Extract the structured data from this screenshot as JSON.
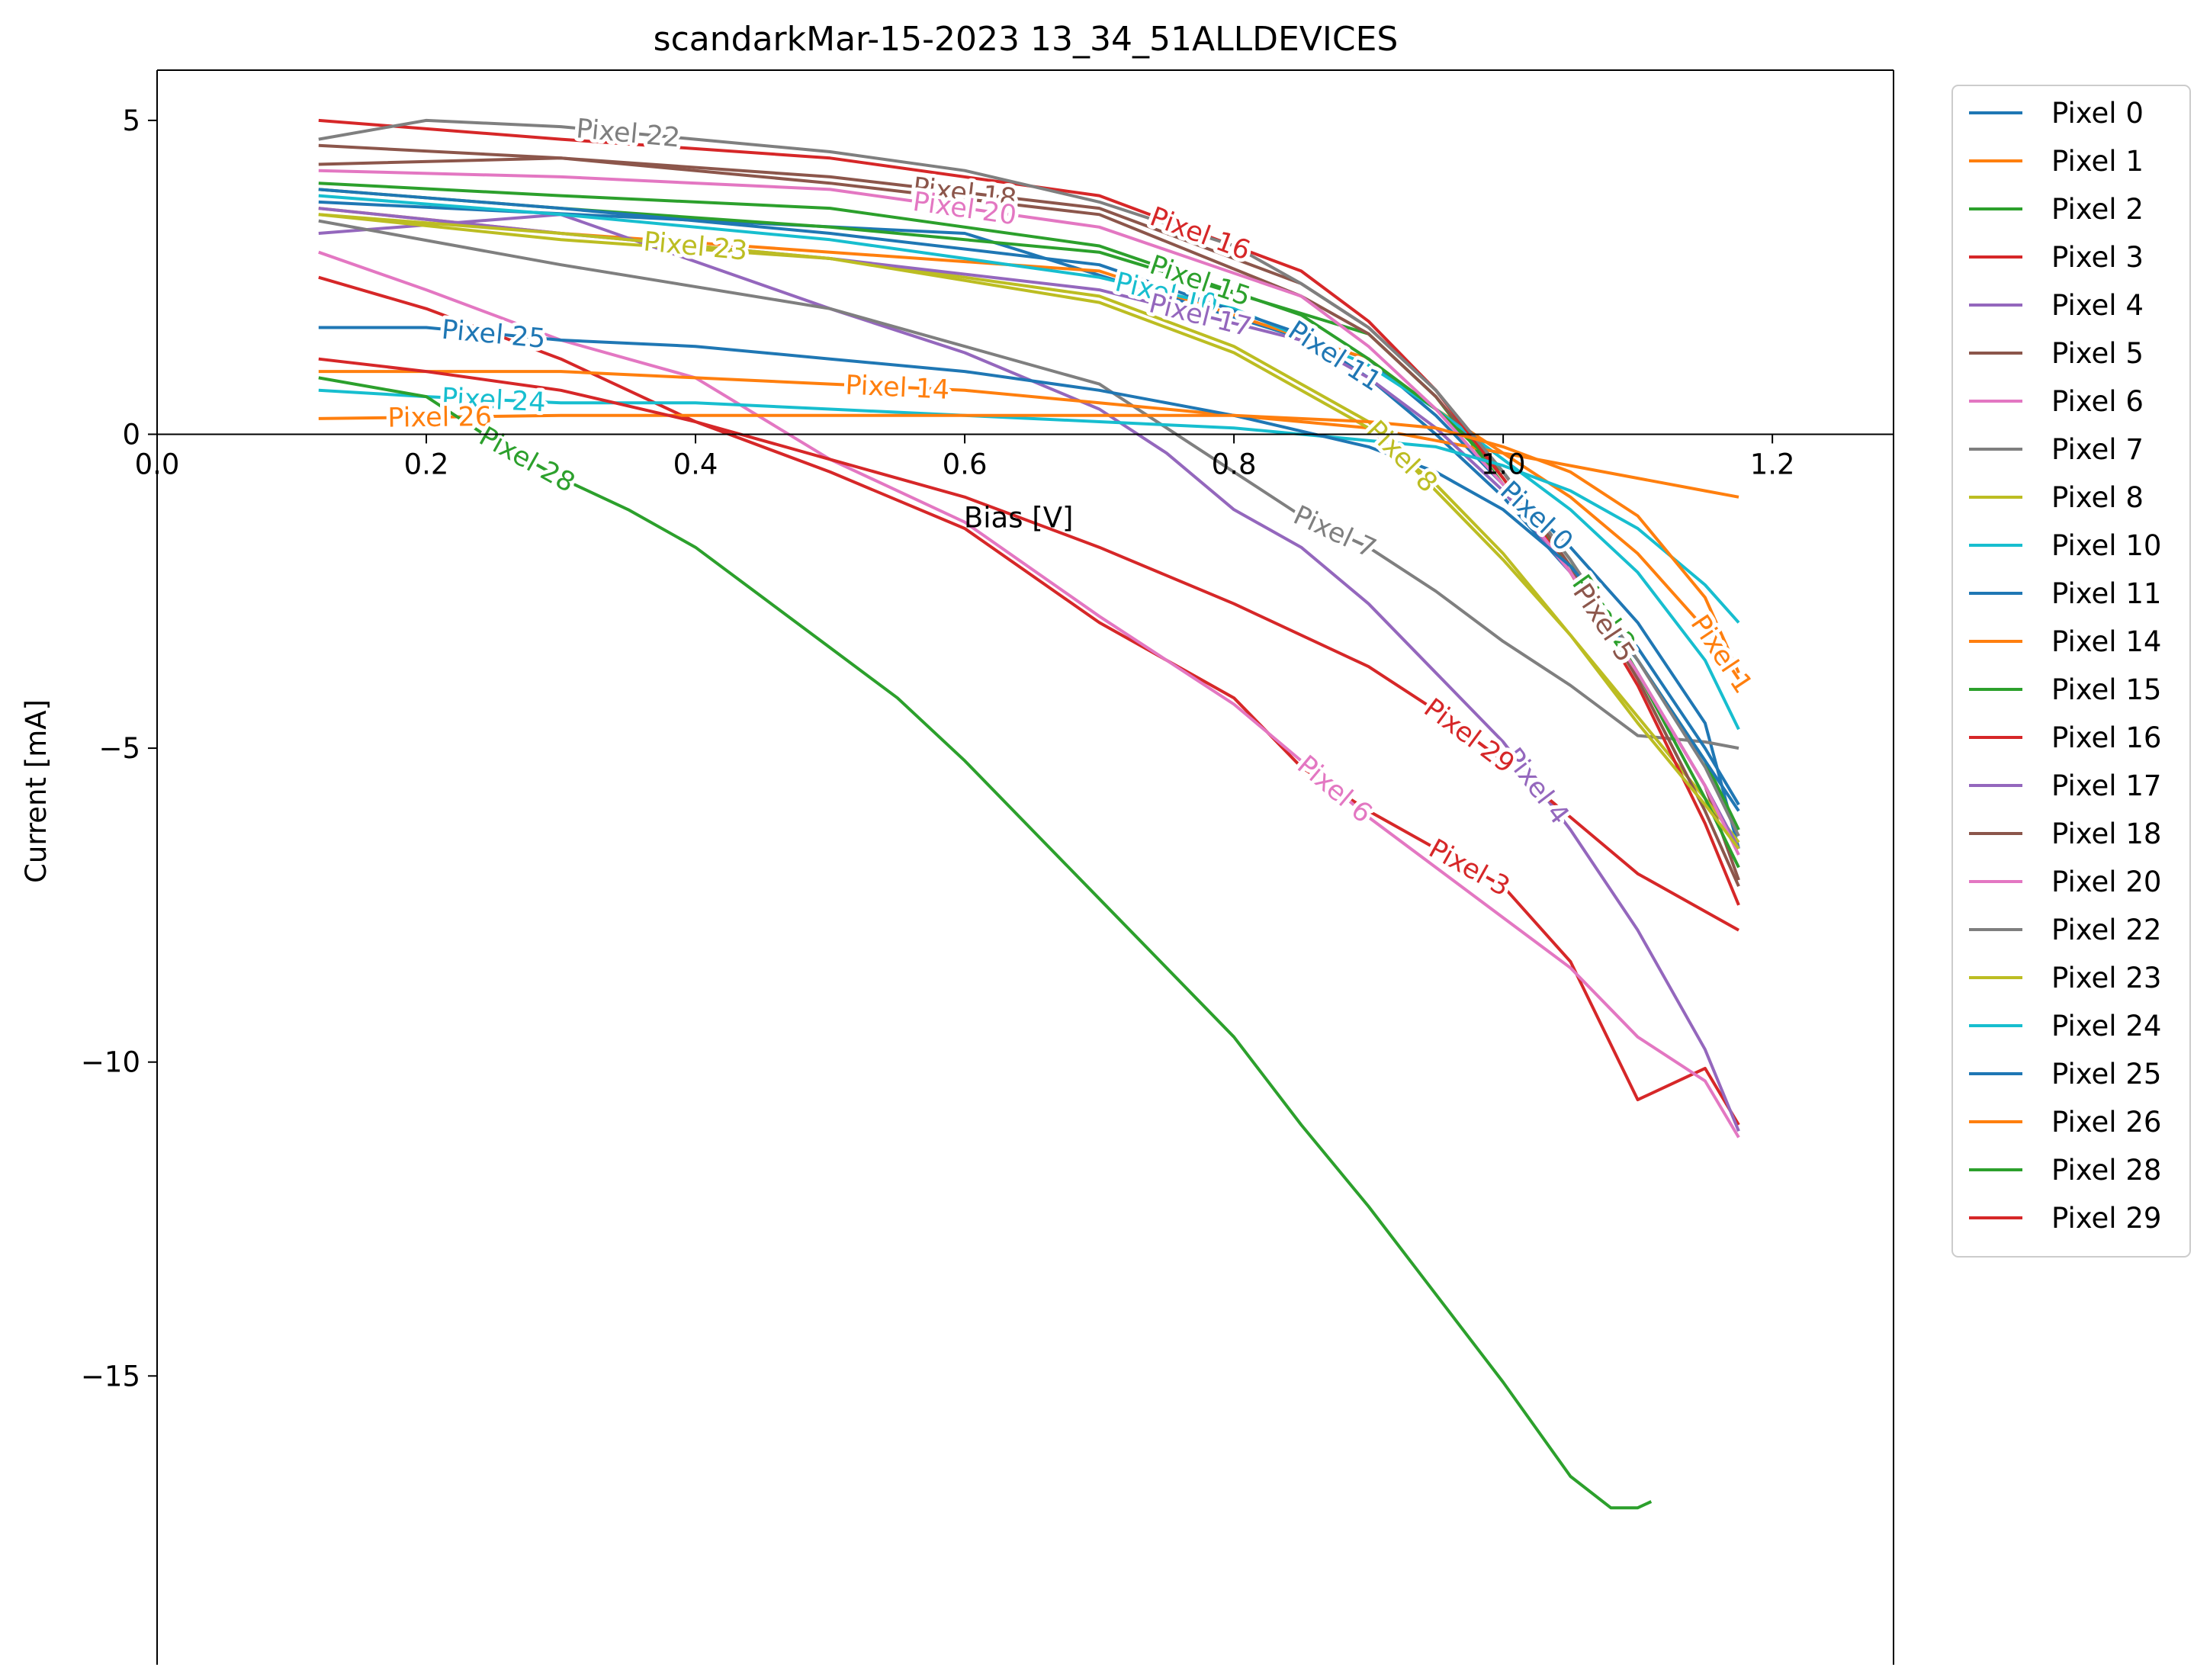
{
  "chart_data": {
    "type": "line",
    "title": "scandarkMar-15-2023 13_34_51ALLDEVICES",
    "xlabel": "Bias [V]",
    "ylabel": "Current [mA]",
    "xlim": [
      0.0,
      1.29
    ],
    "ylim": [
      -19.6,
      5.8
    ],
    "x_ticks": [
      0.0,
      0.2,
      0.4,
      0.6,
      0.8,
      1.0,
      1.2
    ],
    "x_tick_labels": [
      "0.0",
      "0.2",
      "0.4",
      "0.6",
      "0.8",
      "1.0",
      "1.2"
    ],
    "y_ticks": [
      5,
      0,
      -5,
      -10,
      -15
    ],
    "y_tick_labels": [
      "5",
      "0",
      "−5",
      "−10",
      "−15"
    ],
    "grid": false,
    "legend_position": "outside-right",
    "series": [
      {
        "name": "Pixel 0",
        "color": "#1f77b4",
        "label_text": "Pixel 0",
        "x": [
          0.12,
          0.6,
          0.9,
          0.95,
          1.0,
          1.05,
          1.1,
          1.15,
          1.175
        ],
        "y": [
          3.7,
          3.2,
          1.2,
          0.3,
          -0.8,
          -1.8,
          -3.0,
          -4.6,
          -6.6
        ]
      },
      {
        "name": "Pixel 1",
        "color": "#ff7f0e",
        "label_text": "Pixel 1",
        "x": [
          0.12,
          0.3,
          0.5,
          0.7,
          0.9,
          0.95,
          1.0,
          1.05,
          1.1,
          1.15,
          1.175
        ],
        "y": [
          3.6,
          3.2,
          2.9,
          2.6,
          1.2,
          0.4,
          -0.3,
          -1.0,
          -1.9,
          -3.1,
          -3.9
        ]
      },
      {
        "name": "Pixel 2",
        "color": "#2ca02c",
        "label_text": "Pixel 2",
        "x": [
          0.12,
          0.3,
          0.5,
          0.7,
          0.9,
          0.95,
          1.0,
          1.05,
          1.1,
          1.15,
          1.175
        ],
        "y": [
          3.9,
          3.6,
          3.3,
          2.9,
          1.6,
          0.6,
          -0.8,
          -2.1,
          -3.6,
          -5.2,
          -6.3
        ]
      },
      {
        "name": "Pixel 3",
        "color": "#d62728",
        "label_text": "Pixel 3",
        "x": [
          0.12,
          0.2,
          0.3,
          0.4,
          0.5,
          0.6,
          0.7,
          0.8,
          0.85,
          0.9,
          0.95,
          1.0,
          1.05,
          1.1,
          1.15,
          1.175
        ],
        "y": [
          2.5,
          2.0,
          1.2,
          0.2,
          -0.6,
          -1.5,
          -3.0,
          -4.2,
          -5.3,
          -6.0,
          -6.6,
          -7.2,
          -8.4,
          -10.6,
          -10.1,
          -11.0
        ]
      },
      {
        "name": "Pixel 4",
        "color": "#9467bd",
        "label_text": "Pixel 4",
        "x": [
          0.12,
          0.3,
          0.5,
          0.6,
          0.7,
          0.75,
          0.8,
          0.85,
          0.9,
          0.95,
          1.0,
          1.05,
          1.1,
          1.15,
          1.175
        ],
        "y": [
          3.2,
          3.5,
          2.0,
          1.3,
          0.4,
          -0.3,
          -1.2,
          -1.8,
          -2.7,
          -3.8,
          -4.9,
          -6.3,
          -7.9,
          -9.8,
          -11.1
        ]
      },
      {
        "name": "Pixel 5",
        "color": "#8c564b",
        "label_text": "Pixel 5",
        "x": [
          0.12,
          0.3,
          0.5,
          0.7,
          0.85,
          0.9,
          0.95,
          1.0,
          1.05,
          1.1,
          1.15,
          1.175
        ],
        "y": [
          4.3,
          4.4,
          4.0,
          3.5,
          2.2,
          1.6,
          0.6,
          -0.7,
          -2.2,
          -3.8,
          -5.6,
          -7.1
        ]
      },
      {
        "name": "Pixel 6",
        "color": "#e377c2",
        "label_text": "Pixel 6",
        "x": [
          0.12,
          0.2,
          0.3,
          0.4,
          0.5,
          0.6,
          0.7,
          0.8,
          0.85,
          0.9,
          0.95,
          1.0,
          1.05,
          1.1,
          1.15,
          1.175
        ],
        "y": [
          2.9,
          2.3,
          1.5,
          0.9,
          -0.4,
          -1.4,
          -2.9,
          -4.3,
          -5.2,
          -6.1,
          -6.9,
          -7.7,
          -8.5,
          -9.6,
          -10.3,
          -11.2
        ]
      },
      {
        "name": "Pixel 7",
        "color": "#7f7f7f",
        "label_text": "Pixel 7",
        "x": [
          0.12,
          0.3,
          0.5,
          0.6,
          0.7,
          0.75,
          0.8,
          0.85,
          0.9,
          0.95,
          1.0,
          1.05,
          1.1,
          1.15,
          1.175
        ],
        "y": [
          3.4,
          2.7,
          2.0,
          1.4,
          0.8,
          0.1,
          -0.6,
          -1.3,
          -1.8,
          -2.5,
          -3.3,
          -4.0,
          -4.8,
          -4.9,
          -5.0
        ]
      },
      {
        "name": "Pixel 8",
        "color": "#bcbd22",
        "label_text": "Pixel 8",
        "x": [
          0.12,
          0.3,
          0.5,
          0.7,
          0.8,
          0.85,
          0.9,
          0.95,
          1.0,
          1.05,
          1.1,
          1.15,
          1.175
        ],
        "y": [
          3.5,
          3.1,
          2.8,
          2.2,
          1.4,
          0.8,
          0.2,
          -0.9,
          -2.0,
          -3.2,
          -4.5,
          -5.8,
          -6.5
        ]
      },
      {
        "name": "Pixel 10",
        "color": "#17becf",
        "label_text": "Pixel 10",
        "x": [
          0.12,
          0.3,
          0.5,
          0.7,
          0.8,
          0.9,
          0.95,
          1.0,
          1.05,
          1.1,
          1.15,
          1.175
        ],
        "y": [
          3.8,
          3.5,
          3.1,
          2.5,
          2.0,
          1.1,
          0.4,
          -0.4,
          -1.2,
          -2.2,
          -3.6,
          -4.7
        ]
      },
      {
        "name": "Pixel 11",
        "color": "#1f77b4",
        "label_text": "Pixel 11",
        "x": [
          0.12,
          0.3,
          0.5,
          0.7,
          0.85,
          0.9,
          0.95,
          1.0,
          1.05,
          1.1,
          1.15,
          1.175
        ],
        "y": [
          3.9,
          3.6,
          3.2,
          2.7,
          1.6,
          0.9,
          0.0,
          -1.0,
          -2.2,
          -3.6,
          -5.2,
          -6.0
        ]
      },
      {
        "name": "Pixel 14",
        "color": "#ff7f0e",
        "label_text": "Pixel 14",
        "x": [
          0.12,
          0.2,
          0.3,
          0.4,
          0.5,
          0.6,
          0.7,
          0.8,
          0.9,
          0.95,
          1.0,
          1.05,
          1.1,
          1.15,
          1.175
        ],
        "y": [
          1.0,
          1.0,
          1.0,
          0.9,
          0.8,
          0.7,
          0.5,
          0.3,
          0.1,
          -0.1,
          -0.3,
          -0.5,
          -0.7,
          -0.9,
          -1.0
        ]
      },
      {
        "name": "Pixel 15",
        "color": "#2ca02c",
        "label_text": "Pixel 15",
        "x": [
          0.12,
          0.3,
          0.5,
          0.7,
          0.85,
          0.9,
          0.95,
          1.0,
          1.05,
          1.1,
          1.15,
          1.175
        ],
        "y": [
          4.0,
          3.8,
          3.6,
          3.0,
          1.9,
          1.2,
          0.4,
          -0.6,
          -2.0,
          -3.8,
          -5.8,
          -6.9
        ]
      },
      {
        "name": "Pixel 16",
        "color": "#d62728",
        "label_text": "Pixel 16",
        "x": [
          0.12,
          0.3,
          0.5,
          0.7,
          0.85,
          0.9,
          0.95,
          1.0,
          1.05,
          1.1,
          1.15,
          1.175
        ],
        "y": [
          5.0,
          4.7,
          4.4,
          3.8,
          2.6,
          1.8,
          0.7,
          -0.7,
          -2.2,
          -4.0,
          -6.2,
          -7.5
        ]
      },
      {
        "name": "Pixel 17",
        "color": "#9467bd",
        "label_text": "Pixel 17",
        "x": [
          0.12,
          0.3,
          0.5,
          0.7,
          0.85,
          0.9,
          0.95,
          1.0,
          1.05,
          1.1,
          1.15,
          1.175
        ],
        "y": [
          3.6,
          3.2,
          2.8,
          2.3,
          1.5,
          0.9,
          0.1,
          -0.9,
          -2.2,
          -3.8,
          -5.6,
          -6.6
        ]
      },
      {
        "name": "Pixel 18",
        "color": "#8c564b",
        "label_text": "Pixel 18",
        "x": [
          0.12,
          0.3,
          0.5,
          0.7,
          0.85,
          0.9,
          0.95,
          1.0,
          1.05,
          1.1,
          1.15,
          1.175
        ],
        "y": [
          4.6,
          4.4,
          4.1,
          3.6,
          2.4,
          1.7,
          0.7,
          -0.6,
          -2.1,
          -3.9,
          -6.0,
          -7.2
        ]
      },
      {
        "name": "Pixel 20",
        "color": "#e377c2",
        "label_text": "Pixel 20",
        "x": [
          0.12,
          0.3,
          0.5,
          0.7,
          0.85,
          0.9,
          0.95,
          1.0,
          1.05,
          1.1,
          1.15,
          1.175
        ],
        "y": [
          4.2,
          4.1,
          3.9,
          3.3,
          2.2,
          1.4,
          0.4,
          -0.8,
          -2.2,
          -3.8,
          -5.6,
          -6.7
        ]
      },
      {
        "name": "Pixel 22",
        "color": "#7f7f7f",
        "label_text": "Pixel 22",
        "x": [
          0.12,
          0.2,
          0.3,
          0.4,
          0.5,
          0.6,
          0.7,
          0.8,
          0.85,
          0.9,
          0.95,
          1.0,
          1.05,
          1.1,
          1.15,
          1.175
        ],
        "y": [
          4.7,
          5.0,
          4.9,
          4.7,
          4.5,
          4.2,
          3.7,
          3.0,
          2.4,
          1.7,
          0.7,
          -0.6,
          -2.0,
          -3.6,
          -5.3,
          -6.4
        ]
      },
      {
        "name": "Pixel 23",
        "color": "#bcbd22",
        "label_text": "Pixel 23",
        "x": [
          0.12,
          0.3,
          0.5,
          0.7,
          0.8,
          0.85,
          0.9,
          0.95,
          1.0,
          1.05,
          1.1,
          1.15,
          1.175
        ],
        "y": [
          3.5,
          3.2,
          2.8,
          2.1,
          1.3,
          0.7,
          0.1,
          -0.8,
          -1.9,
          -3.2,
          -4.6,
          -5.9,
          -6.6
        ]
      },
      {
        "name": "Pixel 24",
        "color": "#17becf",
        "label_text": "Pixel 24",
        "x": [
          0.12,
          0.2,
          0.3,
          0.4,
          0.5,
          0.6,
          0.7,
          0.8,
          0.9,
          0.95,
          1.0,
          1.05,
          1.1,
          1.15,
          1.175
        ],
        "y": [
          0.7,
          0.6,
          0.5,
          0.5,
          0.4,
          0.3,
          0.2,
          0.1,
          -0.1,
          -0.2,
          -0.5,
          -0.9,
          -1.5,
          -2.4,
          -3.0
        ]
      },
      {
        "name": "Pixel 25",
        "color": "#1f77b4",
        "label_text": "Pixel 25",
        "x": [
          0.12,
          0.2,
          0.3,
          0.4,
          0.5,
          0.6,
          0.7,
          0.8,
          0.9,
          0.95,
          1.0,
          1.05,
          1.1,
          1.15,
          1.175
        ],
        "y": [
          1.7,
          1.7,
          1.5,
          1.4,
          1.2,
          1.0,
          0.7,
          0.3,
          -0.2,
          -0.6,
          -1.2,
          -2.1,
          -3.4,
          -5.0,
          -5.9
        ]
      },
      {
        "name": "Pixel 26",
        "color": "#ff7f0e",
        "label_text": "Pixel 26",
        "x": [
          0.12,
          0.3,
          0.5,
          0.7,
          0.8,
          0.9,
          0.95,
          1.0,
          1.05,
          1.1,
          1.15,
          1.175
        ],
        "y": [
          0.25,
          0.3,
          0.3,
          0.3,
          0.3,
          0.2,
          0.1,
          -0.2,
          -0.6,
          -1.3,
          -2.6,
          -3.8
        ]
      },
      {
        "name": "Pixel 28",
        "color": "#2ca02c",
        "label_text": "Pixel 28",
        "x": [
          0.12,
          0.2,
          0.25,
          0.3,
          0.35,
          0.4,
          0.45,
          0.5,
          0.55,
          0.6,
          0.65,
          0.7,
          0.75,
          0.8,
          0.85,
          0.9,
          0.95,
          1.0,
          1.05,
          1.08,
          1.1,
          1.11
        ],
        "y": [
          0.9,
          0.6,
          -0.1,
          -0.7,
          -1.2,
          -1.8,
          -2.6,
          -3.4,
          -4.2,
          -5.2,
          -6.3,
          -7.4,
          -8.5,
          -9.6,
          -11.0,
          -12.3,
          -13.7,
          -15.1,
          -16.6,
          -17.1,
          -17.1,
          -17.0
        ]
      },
      {
        "name": "Pixel 29",
        "color": "#d62728",
        "label_text": "Pixel 29",
        "x": [
          0.12,
          0.2,
          0.3,
          0.4,
          0.5,
          0.6,
          0.7,
          0.8,
          0.9,
          0.95,
          1.0,
          1.05,
          1.1,
          1.15,
          1.175
        ],
        "y": [
          1.2,
          1.0,
          0.7,
          0.2,
          -0.4,
          -1.0,
          -1.8,
          -2.7,
          -3.7,
          -4.4,
          -5.2,
          -6.1,
          -7.0,
          -7.6,
          -7.9
        ]
      }
    ]
  }
}
